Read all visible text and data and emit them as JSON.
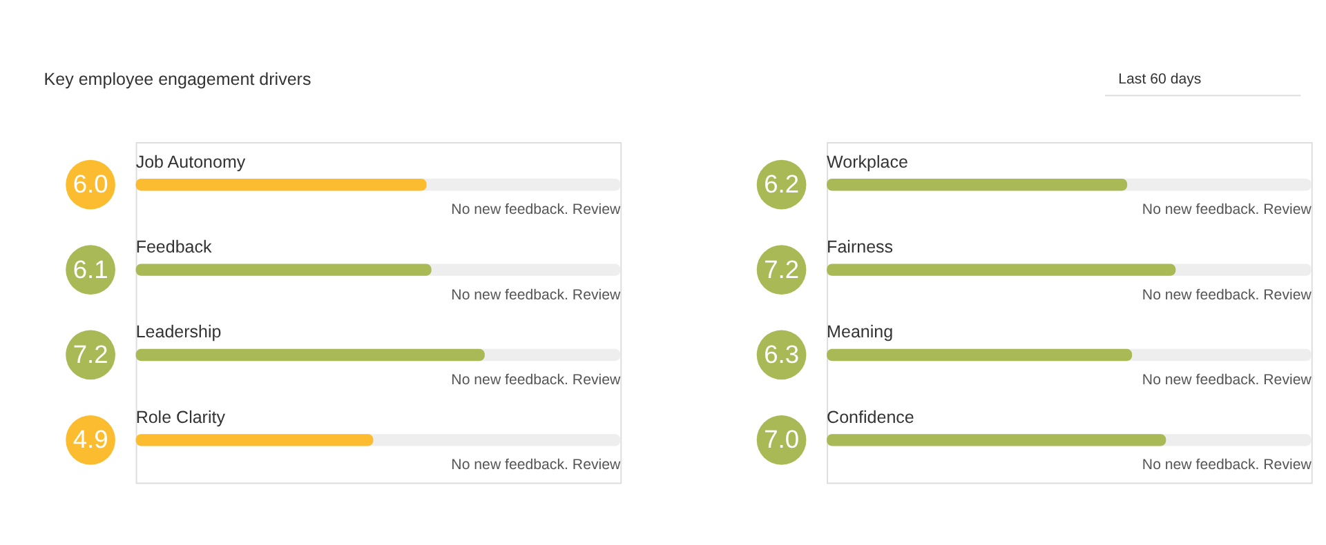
{
  "chart_data": [
    {
      "type": "bar",
      "orientation": "horizontal",
      "title": "Key employee engagement drivers",
      "categories": [
        "Job Autonomy",
        "Feedback",
        "Leadership",
        "Role Clarity"
      ],
      "values": [
        6.0,
        6.1,
        7.2,
        4.9
      ],
      "value_labels": [
        "6.0",
        "6.1",
        "7.2",
        "4.9"
      ],
      "colors": [
        "#fbbd2f",
        "#a8b955",
        "#a8b955",
        "#fbbd2f"
      ],
      "xlim": [
        0,
        10
      ],
      "tick_labels": false,
      "annotations": [
        "No new feedback. Review",
        "No new feedback. Review",
        "No new feedback. Review",
        "No new feedback. Review"
      ]
    },
    {
      "type": "bar",
      "orientation": "horizontal",
      "subtitle": "Last 60 days",
      "categories": [
        "Workplace",
        "Fairness",
        "Meaning",
        "Confidence"
      ],
      "values": [
        6.2,
        7.2,
        6.3,
        7.0
      ],
      "value_labels": [
        "6.2",
        "7.2",
        "6.3",
        "7.0"
      ],
      "colors": [
        "#a8b955",
        "#a8b955",
        "#a8b955",
        "#a8b955"
      ],
      "xlim": [
        0,
        10
      ],
      "tick_labels": false,
      "annotations": [
        "No new feedback. Review",
        "No new feedback. Review",
        "No new feedback. Review",
        "No new feedback. Review"
      ]
    }
  ]
}
